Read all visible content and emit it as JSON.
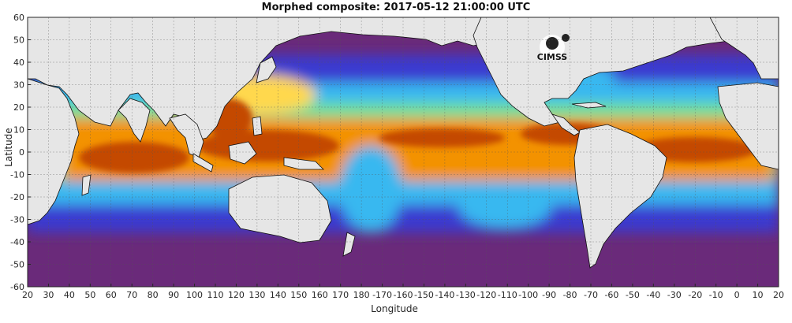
{
  "title": "Morphed composite: 2017-05-12 21:00:00 UTC",
  "x_axis": {
    "label": "Longitude",
    "ticks": [
      "20",
      "30",
      "40",
      "50",
      "60",
      "70",
      "80",
      "90",
      "100",
      "110",
      "120",
      "130",
      "140",
      "150",
      "160",
      "170",
      "180",
      "-170",
      "-160",
      "-150",
      "-140",
      "-130",
      "-120",
      "-110",
      "-100",
      "-90",
      "-80",
      "-70",
      "-60",
      "-50",
      "-40",
      "-30",
      "-20",
      "-10",
      "0",
      "10",
      "20"
    ]
  },
  "y_axis": {
    "label": "Latitude",
    "ticks": [
      "60",
      "50",
      "40",
      "30",
      "20",
      "10",
      "0",
      "-10",
      "-20",
      "-30",
      "-40",
      "-50",
      "-60"
    ]
  },
  "logo": {
    "text": "CIMSS",
    "icon": "cimss-logo"
  },
  "colors": {
    "land": "#e6e6e6",
    "dry": "#6a2a7a",
    "low": "#4040d8",
    "mid": "#33b3ff",
    "moist": "#66e6a6",
    "wet": "#ff9a00",
    "very_wet": "#c04000",
    "grid": "#555555"
  },
  "map_data": {
    "extent_lon": [
      20,
      380
    ],
    "extent_lat": [
      -60,
      60
    ],
    "grid": true,
    "colormap": [
      "#6a2a7a",
      "#4040d8",
      "#33b3ff",
      "#66e6a6",
      "#ffe640",
      "#ff9a00",
      "#c04000"
    ]
  }
}
